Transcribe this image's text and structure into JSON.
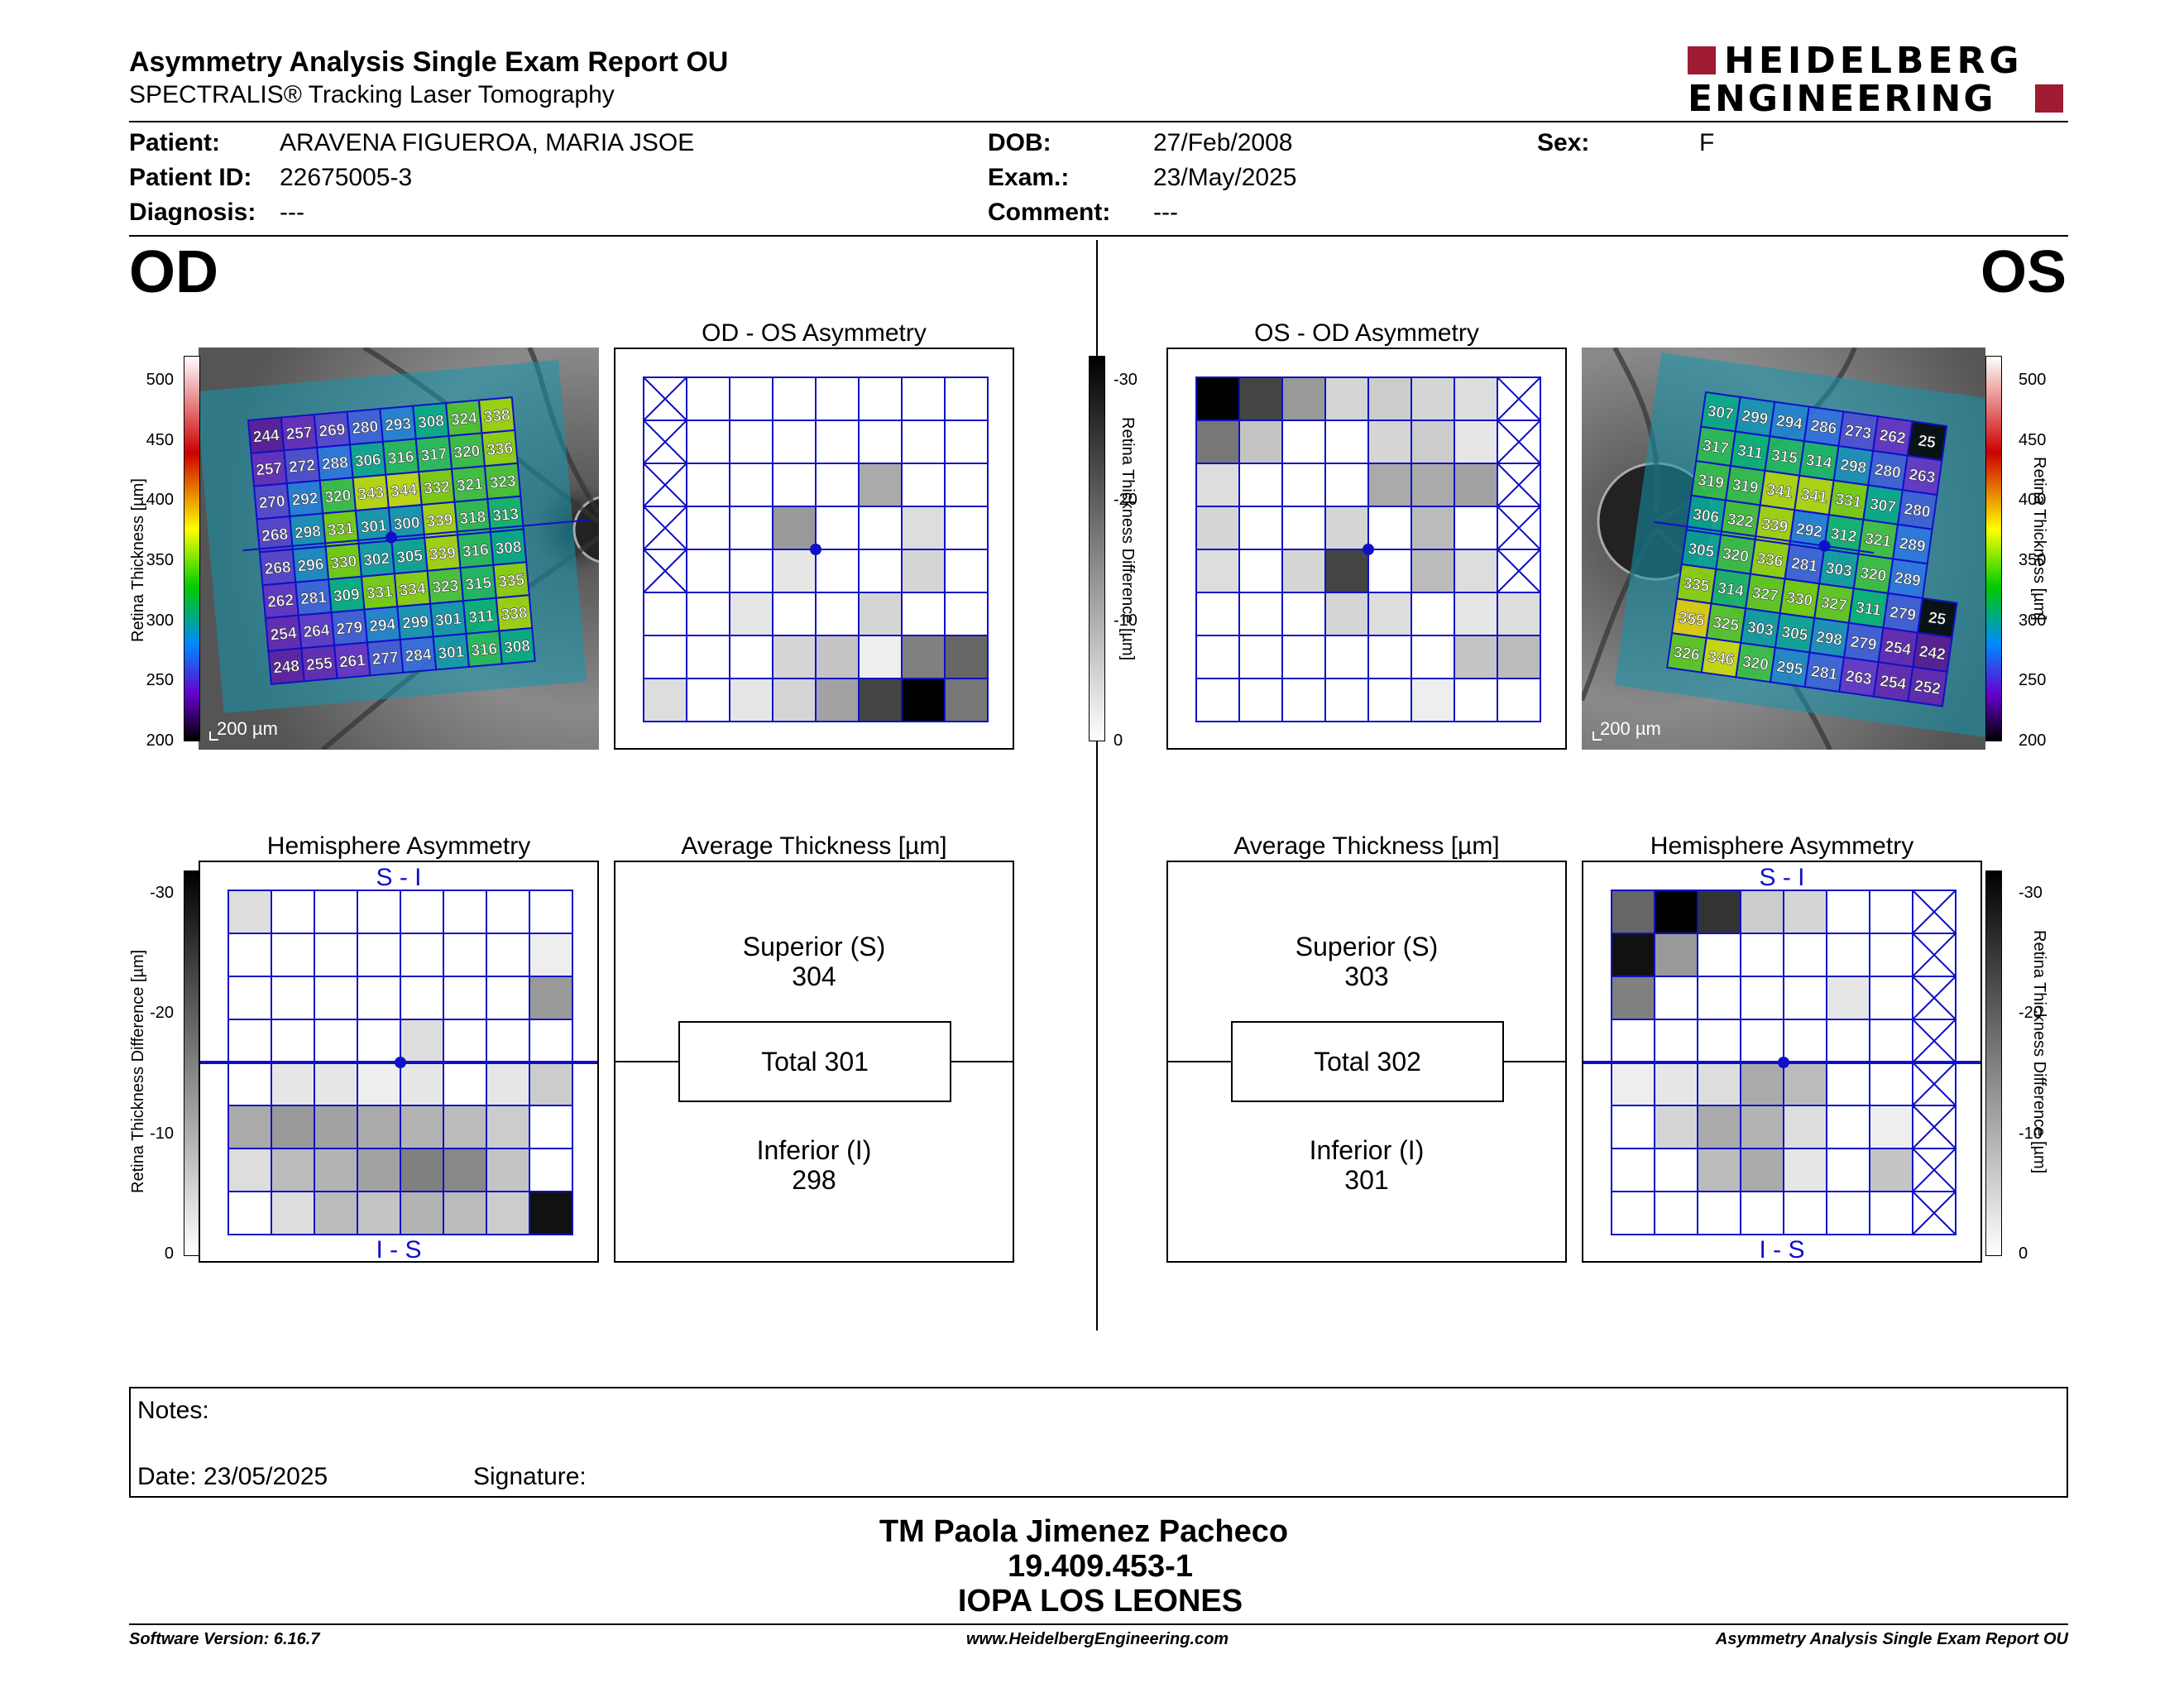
{
  "header": {
    "title": "Asymmetry Analysis Single Exam Report OU",
    "subtitle": "SPECTRALIS® Tracking Laser Tomography",
    "logo_line1": "HEIDELBERG",
    "logo_line2": "ENGINEERING",
    "brand_color": "#9e1b32"
  },
  "patient": {
    "patient_label": "Patient:",
    "patient_value": "ARAVENA FIGUEROA, MARIA JSOE",
    "id_label": "Patient ID:",
    "id_value": "22675005-3",
    "diagnosis_label": "Diagnosis:",
    "diagnosis_value": "---",
    "dob_label": "DOB:",
    "dob_value": "27/Feb/2008",
    "exam_label": "Exam.:",
    "exam_value": "23/May/2025",
    "comment_label": "Comment:",
    "comment_value": "---",
    "sex_label": "Sex:",
    "sex_value": "F"
  },
  "od": {
    "eye_label": "OD",
    "thickness_scale": [
      "500",
      "450",
      "400",
      "350",
      "300",
      "250",
      "200"
    ],
    "thickness_axis_label": "Retina Thickness [µm]",
    "scale_bar": "200 µm",
    "grid": [
      [
        244,
        257,
        269,
        280,
        293,
        308,
        324,
        338
      ],
      [
        257,
        272,
        288,
        306,
        316,
        317,
        320,
        336
      ],
      [
        270,
        292,
        320,
        343,
        344,
        332,
        321,
        323
      ],
      [
        268,
        298,
        331,
        301,
        300,
        339,
        318,
        313
      ],
      [
        268,
        296,
        330,
        302,
        305,
        339,
        316,
        308
      ],
      [
        262,
        281,
        309,
        331,
        334,
        323,
        315,
        335
      ],
      [
        254,
        264,
        279,
        294,
        299,
        301,
        311,
        338
      ],
      [
        248,
        255,
        261,
        277,
        284,
        301,
        316,
        308
      ]
    ],
    "asym_title": "OD - OS Asymmetry",
    "asym_cells": [
      [
        -1,
        0,
        0,
        0,
        0,
        0,
        0,
        0
      ],
      [
        -1,
        0,
        0,
        0,
        0,
        0,
        0,
        0
      ],
      [
        -1,
        0,
        0,
        0,
        0,
        10,
        0,
        0
      ],
      [
        -1,
        0,
        0,
        12,
        0,
        0,
        4,
        0
      ],
      [
        -1,
        0,
        0,
        3,
        0,
        0,
        5,
        0
      ],
      [
        0,
        0,
        3,
        0,
        0,
        5,
        0,
        0
      ],
      [
        0,
        0,
        0,
        5,
        7,
        2,
        15,
        18
      ],
      [
        4,
        0,
        3,
        5,
        11,
        22,
        30,
        16
      ]
    ],
    "hemi_title": "Hemisphere Asymmetry",
    "hemi_top": "S - I",
    "hemi_bottom": "I - S",
    "hemi_cells": [
      [
        4,
        0,
        0,
        0,
        0,
        0,
        0,
        0
      ],
      [
        0,
        0,
        0,
        0,
        0,
        0,
        0,
        2
      ],
      [
        0,
        0,
        0,
        0,
        0,
        0,
        0,
        12
      ],
      [
        0,
        0,
        0,
        0,
        4,
        0,
        0,
        0
      ],
      [
        0,
        3,
        3,
        2,
        3,
        0,
        3,
        6
      ],
      [
        10,
        12,
        11,
        10,
        9,
        8,
        6,
        0
      ],
      [
        4,
        8,
        9,
        11,
        15,
        14,
        7,
        0
      ],
      [
        0,
        4,
        8,
        7,
        9,
        8,
        6,
        28
      ]
    ],
    "avg_title": "Average Thickness [µm]",
    "superior_label": "Superior (S)",
    "superior_value": "304",
    "total_label": "Total 301",
    "inferior_label": "Inferior (I)",
    "inferior_value": "298"
  },
  "os": {
    "eye_label": "OS",
    "thickness_scale": [
      "500",
      "450",
      "400",
      "350",
      "300",
      "250",
      "200"
    ],
    "thickness_axis_label": "Retina Thickness [µm]",
    "scale_bar": "200 µm",
    "grid": [
      [
        307,
        299,
        294,
        286,
        273,
        262,
        "25"
      ],
      [
        317,
        311,
        315,
        314,
        298,
        280,
        "263"
      ],
      [
        319,
        319,
        341,
        341,
        331,
        307,
        280
      ],
      [
        306,
        322,
        339,
        292,
        312,
        321,
        289
      ],
      [
        305,
        320,
        336,
        281,
        303,
        320,
        289
      ],
      [
        335,
        314,
        327,
        330,
        327,
        311,
        279,
        "25"
      ],
      [
        355,
        325,
        303,
        305,
        298,
        279,
        254,
        242
      ],
      [
        326,
        346,
        320,
        295,
        281,
        263,
        254,
        252
      ]
    ],
    "asym_title": "OS - OD Asymmetry",
    "asym_cells": [
      [
        30,
        22,
        12,
        5,
        6,
        5,
        4,
        -1
      ],
      [
        16,
        7,
        0,
        0,
        5,
        6,
        3,
        -1
      ],
      [
        4,
        0,
        0,
        0,
        10,
        10,
        11,
        -1
      ],
      [
        5,
        0,
        0,
        5,
        0,
        8,
        0,
        -1
      ],
      [
        4,
        0,
        5,
        22,
        0,
        8,
        4,
        -1
      ],
      [
        0,
        0,
        0,
        5,
        4,
        0,
        3,
        4
      ],
      [
        0,
        0,
        0,
        0,
        0,
        0,
        7,
        8
      ],
      [
        0,
        0,
        0,
        0,
        0,
        2,
        0,
        0
      ]
    ],
    "hemi_title": "Hemisphere Asymmetry",
    "hemi_top": "S - I",
    "hemi_bottom": "I - S",
    "hemi_cells": [
      [
        18,
        30,
        24,
        6,
        5,
        0,
        0,
        -1
      ],
      [
        28,
        12,
        0,
        0,
        0,
        0,
        0,
        -1
      ],
      [
        15,
        0,
        0,
        0,
        0,
        3,
        0,
        -1
      ],
      [
        0,
        0,
        0,
        0,
        0,
        0,
        0,
        -1
      ],
      [
        2,
        3,
        4,
        10,
        8,
        0,
        0,
        -1
      ],
      [
        0,
        5,
        10,
        9,
        4,
        0,
        2,
        -1
      ],
      [
        0,
        0,
        8,
        10,
        3,
        0,
        7,
        -1
      ],
      [
        0,
        0,
        0,
        0,
        0,
        0,
        0,
        -1
      ]
    ],
    "avg_title": "Average Thickness [µm]",
    "superior_label": "Superior (S)",
    "superior_value": "303",
    "total_label": "Total 302",
    "inferior_label": "Inferior (I)",
    "inferior_value": "301"
  },
  "diff_scale": [
    "-30",
    "-20",
    "-10",
    "0"
  ],
  "diff_axis_label": "Retina Thickness Difference [µm]",
  "notes": {
    "notes_label": "Notes:",
    "date_label": "Date: 23/05/2025",
    "signature_label": "Signature:"
  },
  "signer": {
    "name": "TM Paola Jimenez Pacheco",
    "id": "19.409.453-1",
    "org": "IOPA LOS LEONES"
  },
  "footer": {
    "software": "Software Version: 6.16.7",
    "website": "www.HeidelbergEngineering.com",
    "report": "Asymmetry Analysis Single Exam Report OU"
  }
}
